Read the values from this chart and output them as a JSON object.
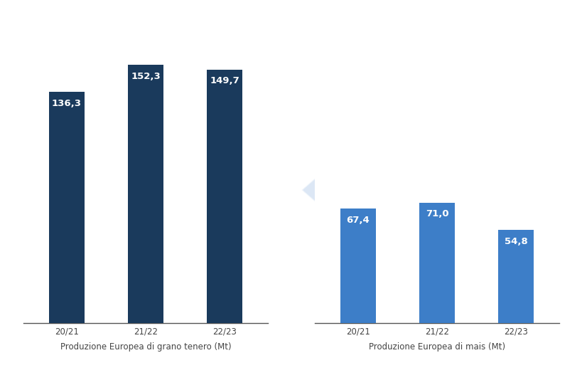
{
  "group1": {
    "categories": [
      "20/21",
      "21/22",
      "22/23"
    ],
    "values": [
      136.3,
      152.3,
      149.7
    ],
    "color": "#1a3a5c",
    "xlabel": "Produzione Europea di grano tenero (Mt)"
  },
  "group2": {
    "categories": [
      "20/21",
      "21/22",
      "22/23"
    ],
    "values": [
      67.4,
      71.0,
      54.8
    ],
    "color": "#3d7ec8",
    "xlabel": "Produzione Europea di mais (Mt)"
  },
  "background_color": "#ffffff",
  "label_color": "#ffffff",
  "axis_label_color": "#444444",
  "bar_width": 0.45,
  "ylim": [
    0,
    175
  ],
  "label_fontsize": 9.5,
  "xlabel_fontsize": 8.5,
  "tick_fontsize": 8.5,
  "watermark_color": "#c5d8ef",
  "watermark_alpha": 0.6
}
